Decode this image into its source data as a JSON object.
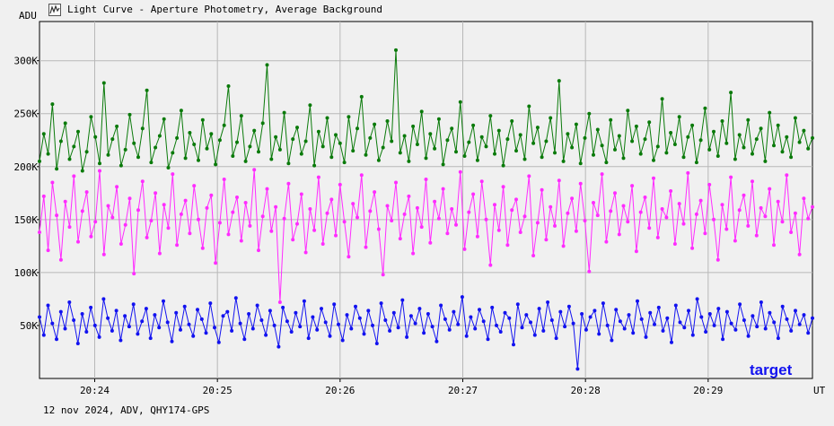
{
  "window": {
    "icon": "light-curve-icon",
    "title": "Light Curve - Aperture Photometry, Average Background"
  },
  "footer": {
    "info": "12 nov 2024, ADV, QHY174-GPS"
  },
  "chart_data": {
    "type": "line",
    "title": "Light Curve - Aperture Photometry, Average Background",
    "ylabel": "ADU",
    "xlabel": "UT",
    "ylim": [
      0,
      337000
    ],
    "xlim": [
      "20:23:33",
      "20:29:51"
    ],
    "x_ticks": [
      "20:24",
      "20:25",
      "20:26",
      "20:27",
      "20:28",
      "20:29"
    ],
    "y_ticks": [
      {
        "value": 50000,
        "label": "50K"
      },
      {
        "value": 100000,
        "label": "100K"
      },
      {
        "value": 150000,
        "label": "150K"
      },
      {
        "value": 200000,
        "label": "200K"
      },
      {
        "value": 250000,
        "label": "250K"
      },
      {
        "value": 300000,
        "label": "300K"
      }
    ],
    "grid": true,
    "colors": {
      "green": "#0a7a0a",
      "magenta": "#ff2cff",
      "blue": "#1212f0",
      "background": "#f0f0f0",
      "grid": "#b8b8b8"
    },
    "annotation": {
      "text": "target",
      "color": "#1212f0"
    },
    "series": [
      {
        "color": "#0a7a0a",
        "x_start": "20:23:33",
        "x_end": "20:29:51",
        "values": [
          205000,
          231000,
          212000,
          259000,
          198000,
          224000,
          241000,
          207000,
          219000,
          233000,
          196000,
          214000,
          247000,
          228000,
          203000,
          279000,
          211000,
          226000,
          238000,
          201000,
          216000,
          249000,
          222000,
          209000,
          236000,
          272000,
          204000,
          218000,
          229000,
          245000,
          199000,
          213000,
          227000,
          253000,
          208000,
          232000,
          221000,
          206000,
          244000,
          217000,
          231000,
          202000,
          225000,
          239000,
          276000,
          210000,
          223000,
          248000,
          205000,
          219000,
          234000,
          214000,
          241000,
          296000,
          207000,
          228000,
          216000,
          251000,
          203000,
          226000,
          237000,
          212000,
          224000,
          258000,
          201000,
          233000,
          219000,
          246000,
          209000,
          230000,
          222000,
          204000,
          247000,
          215000,
          236000,
          266000,
          211000,
          227000,
          240000,
          206000,
          218000,
          243000,
          224000,
          310000,
          213000,
          229000,
          205000,
          238000,
          221000,
          252000,
          208000,
          231000,
          217000,
          245000,
          202000,
          225000,
          236000,
          214000,
          261000,
          210000,
          223000,
          239000,
          206000,
          228000,
          219000,
          248000,
          212000,
          234000,
          201000,
          226000,
          243000,
          215000,
          230000,
          207000,
          257000,
          222000,
          237000,
          209000,
          224000,
          246000,
          213000,
          281000,
          205000,
          231000,
          218000,
          240000,
          203000,
          227000,
          250000,
          211000,
          235000,
          220000,
          204000,
          244000,
          216000,
          229000,
          208000,
          253000,
          224000,
          238000,
          212000,
          226000,
          242000,
          206000,
          219000,
          264000,
          213000,
          232000,
          221000,
          247000,
          209000,
          228000,
          239000,
          204000,
          225000,
          255000,
          216000,
          233000,
          210000,
          243000,
          222000,
          270000,
          207000,
          230000,
          218000,
          244000,
          212000,
          226000,
          236000,
          205000,
          251000,
          220000,
          239000,
          214000,
          228000,
          209000,
          246000,
          223000,
          234000,
          217000,
          227000
        ]
      },
      {
        "color": "#ff2cff",
        "x_start": "20:23:33",
        "x_end": "20:29:51",
        "values": [
          138000,
          172000,
          121000,
          185000,
          154000,
          112000,
          167000,
          143000,
          191000,
          129000,
          158000,
          176000,
          134000,
          148000,
          196000,
          117000,
          163000,
          152000,
          181000,
          127000,
          145000,
          170000,
          99000,
          159000,
          186000,
          133000,
          149000,
          175000,
          118000,
          164000,
          142000,
          193000,
          126000,
          155000,
          168000,
          137000,
          182000,
          150000,
          123000,
          161000,
          173000,
          109000,
          147000,
          188000,
          136000,
          157000,
          171000,
          130000,
          166000,
          144000,
          197000,
          121000,
          153000,
          179000,
          139000,
          162000,
          72000,
          151000,
          184000,
          131000,
          146000,
          174000,
          119000,
          160000,
          140000,
          190000,
          127000,
          156000,
          169000,
          135000,
          183000,
          148000,
          115000,
          165000,
          152000,
          192000,
          124000,
          158000,
          176000,
          141000,
          98000,
          163000,
          149000,
          185000,
          132000,
          155000,
          172000,
          118000,
          161000,
          143000,
          188000,
          128000,
          167000,
          151000,
          179000,
          137000,
          160000,
          145000,
          195000,
          122000,
          157000,
          174000,
          134000,
          186000,
          150000,
          107000,
          164000,
          140000,
          181000,
          126000,
          159000,
          169000,
          138000,
          153000,
          191000,
          116000,
          147000,
          178000,
          131000,
          162000,
          144000,
          187000,
          125000,
          156000,
          170000,
          139000,
          184000,
          149000,
          101000,
          166000,
          154000,
          193000,
          129000,
          158000,
          175000,
          136000,
          163000,
          148000,
          182000,
          120000,
          157000,
          171000,
          142000,
          189000,
          133000,
          160000,
          152000,
          177000,
          127000,
          165000,
          146000,
          194000,
          123000,
          155000,
          168000,
          137000,
          183000,
          150000,
          112000,
          164000,
          141000,
          190000,
          130000,
          159000,
          173000,
          144000,
          186000,
          135000,
          161000,
          153000,
          179000,
          126000,
          167000,
          148000,
          192000,
          138000,
          156000,
          117000,
          170000,
          151000,
          162000
        ]
      },
      {
        "color": "#1212f0",
        "x_start": "20:23:33",
        "x_end": "20:29:51",
        "values": [
          58000,
          41000,
          69000,
          52000,
          37000,
          63000,
          47000,
          72000,
          55000,
          33000,
          61000,
          44000,
          67000,
          50000,
          39000,
          75000,
          57000,
          45000,
          64000,
          36000,
          59000,
          49000,
          70000,
          42000,
          54000,
          66000,
          38000,
          60000,
          48000,
          73000,
          53000,
          35000,
          62000,
          46000,
          68000,
          51000,
          40000,
          65000,
          56000,
          43000,
          71000,
          48000,
          34000,
          59000,
          63000,
          45000,
          76000,
          52000,
          37000,
          61000,
          47000,
          69000,
          55000,
          41000,
          64000,
          50000,
          30000,
          67000,
          54000,
          44000,
          62000,
          49000,
          73000,
          38000,
          58000,
          46000,
          66000,
          53000,
          40000,
          70000,
          51000,
          36000,
          60000,
          47000,
          68000,
          57000,
          42000,
          64000,
          50000,
          33000,
          71000,
          55000,
          45000,
          62000,
          48000,
          74000,
          39000,
          59000,
          52000,
          66000,
          43000,
          61000,
          49000,
          35000,
          69000,
          56000,
          46000,
          63000,
          51000,
          77000,
          40000,
          58000,
          47000,
          65000,
          54000,
          37000,
          67000,
          50000,
          44000,
          62000,
          57000,
          32000,
          70000,
          48000,
          60000,
          53000,
          41000,
          66000,
          45000,
          72000,
          55000,
          38000,
          63000,
          49000,
          68000,
          52000,
          9000,
          61000,
          46000,
          58000,
          64000,
          42000,
          71000,
          50000,
          36000,
          65000,
          54000,
          47000,
          60000,
          43000,
          73000,
          56000,
          39000,
          62000,
          51000,
          67000,
          45000,
          57000,
          34000,
          69000,
          53000,
          48000,
          64000,
          41000,
          75000,
          58000,
          44000,
          61000,
          50000,
          66000,
          37000,
          63000,
          52000,
          46000,
          70000,
          55000,
          40000,
          59000,
          49000,
          72000,
          47000,
          62000,
          53000,
          38000,
          68000,
          56000,
          45000,
          64000,
          51000,
          60000,
          43000,
          57000
        ]
      }
    ]
  }
}
